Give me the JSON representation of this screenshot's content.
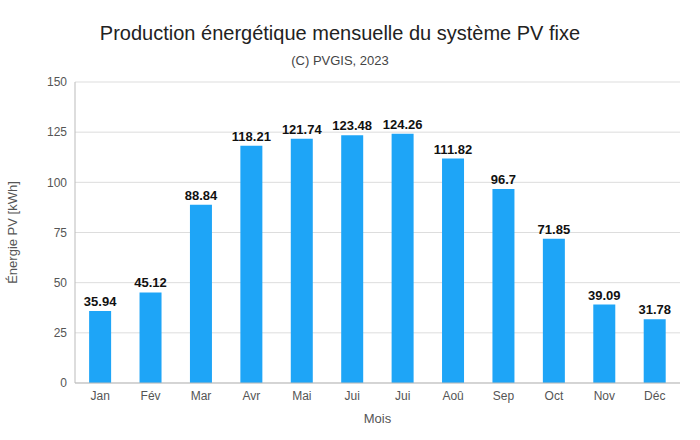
{
  "chart_data": {
    "type": "bar",
    "title": "Production énergétique mensuelle du système PV fixe",
    "subtitle": "(C) PVGIS, 2023",
    "x_label": "Mois",
    "y_label": "Énergie PV [kWh]",
    "categories": [
      "Jan",
      "Fév",
      "Mar",
      "Avr",
      "Mai",
      "Jui",
      "Jui",
      "Aoû",
      "Sep",
      "Oct",
      "Nov",
      "Déc"
    ],
    "values": [
      35.94,
      45.12,
      88.84,
      118.21,
      121.74,
      123.48,
      124.26,
      111.82,
      96.7,
      71.85,
      39.09,
      31.78
    ],
    "color": "#1ea5f7",
    "ylim": [
      0,
      150
    ],
    "yticks": [
      0,
      25,
      50,
      75,
      100,
      125,
      150
    ],
    "grid": true,
    "data_labels": true
  }
}
